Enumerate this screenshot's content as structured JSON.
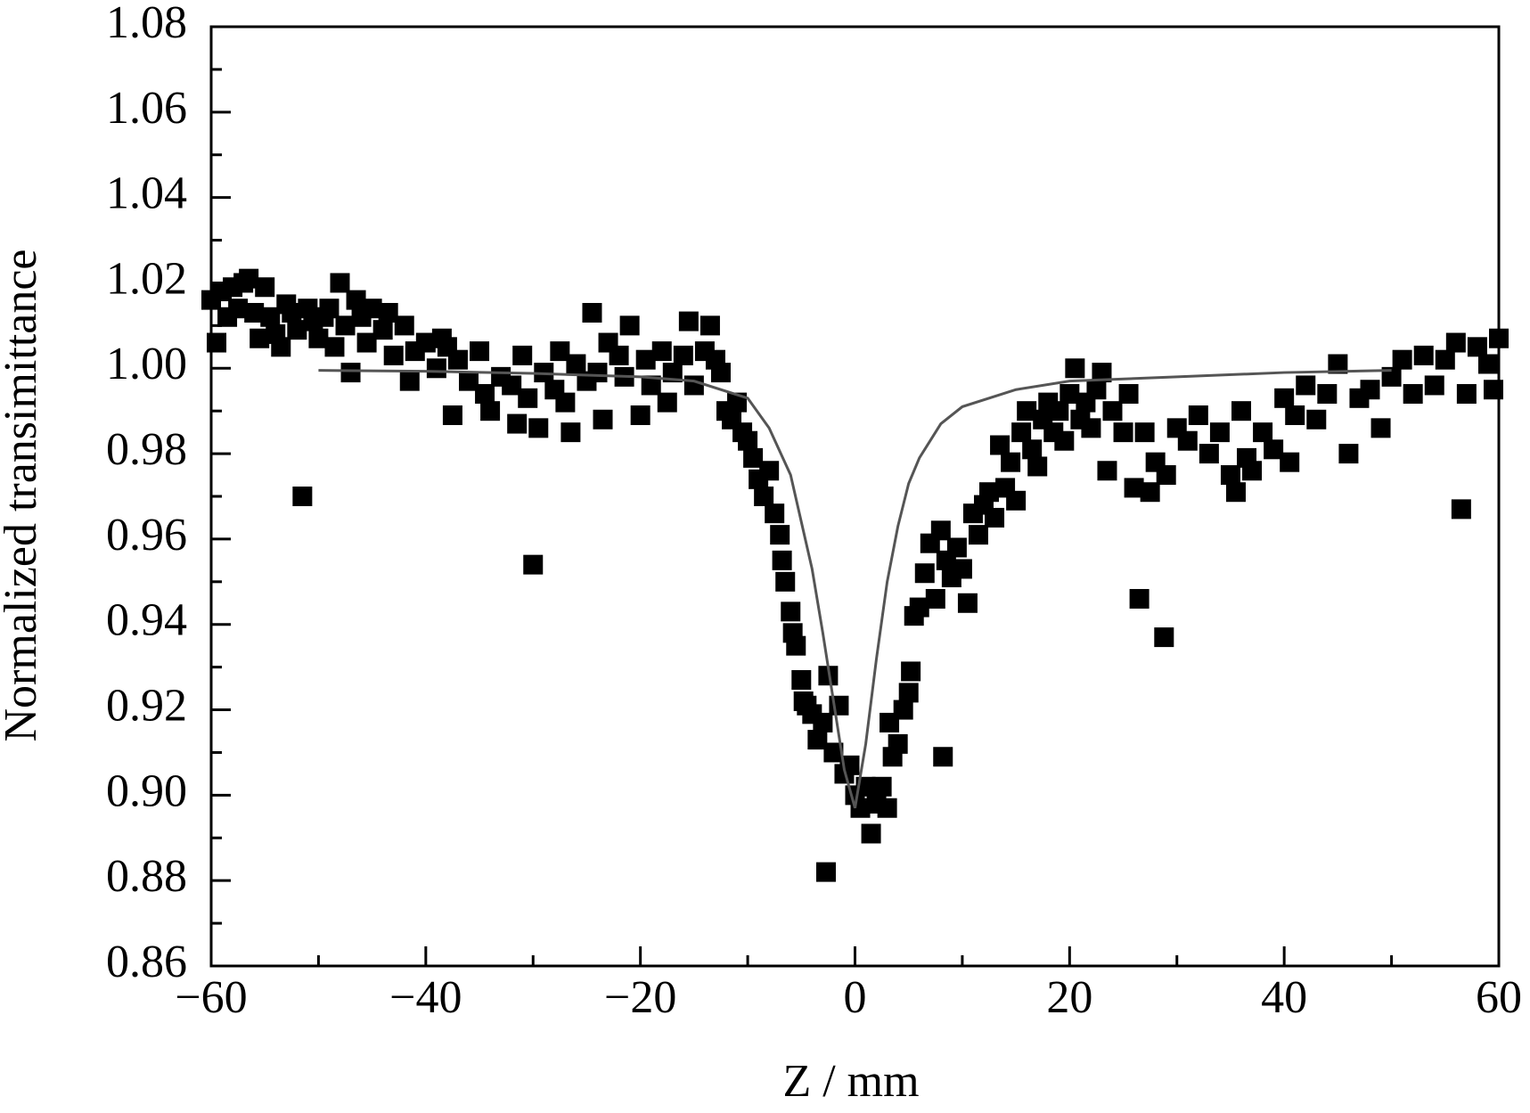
{
  "chart_data": {
    "type": "scatter",
    "x_label": "Z / mm",
    "y_label": "Normalized transimittance",
    "xlim": [
      -60,
      60
    ],
    "ylim": [
      0.86,
      1.08
    ],
    "xticks": [
      {
        "value": -60,
        "label": "−60"
      },
      {
        "value": -40,
        "label": "−40"
      },
      {
        "value": -20,
        "label": "−20"
      },
      0,
      20,
      40,
      60
    ],
    "xminorticks": [
      -50,
      -30,
      -10,
      10,
      30,
      50
    ],
    "yticks": [
      {
        "value": 0.86,
        "label": "0.86"
      },
      {
        "value": 0.88,
        "label": "0.88"
      },
      {
        "value": 0.9,
        "label": "0.90"
      },
      {
        "value": 0.92,
        "label": "0.92"
      },
      {
        "value": 0.94,
        "label": "0.94"
      },
      {
        "value": 0.96,
        "label": "0.96"
      },
      {
        "value": 0.98,
        "label": "0.98"
      },
      {
        "value": 1,
        "label": "1.00"
      },
      {
        "value": 1.02,
        "label": "1.02"
      },
      {
        "value": 1.04,
        "label": "1.04"
      },
      {
        "value": 1.06,
        "label": "1.06"
      },
      {
        "value": 1.08,
        "label": "1.08"
      }
    ],
    "yminorticks": [
      0.87,
      0.89,
      0.91,
      0.93,
      0.95,
      0.97,
      0.99,
      1.01,
      1.03,
      1.05,
      1.07
    ],
    "series": [
      {
        "type": "scatter",
        "color": "#000000",
        "x": [
          -60,
          -59.5,
          -59,
          -58.5,
          -58,
          -57.5,
          -57,
          -56.5,
          -56,
          -55.5,
          -55,
          -54.5,
          -54,
          -53.5,
          -53,
          -52.5,
          -52,
          -51.5,
          -51,
          -50.5,
          -50,
          -49.5,
          -49,
          -48.5,
          -48,
          -47.5,
          -47,
          -46.5,
          -46,
          -45.5,
          -45,
          -44,
          -43.5,
          -43,
          -42,
          -41.5,
          -41,
          -40,
          -39,
          -38.5,
          -38,
          -37.5,
          -37,
          -36,
          -35,
          -34.5,
          -34,
          -33,
          -32,
          -31.5,
          -31,
          -30.5,
          -30,
          -29.5,
          -29,
          -28,
          -27.5,
          -27,
          -26.5,
          -26,
          -25,
          -24.5,
          -24,
          -23.5,
          -23,
          -22,
          -21.5,
          -21,
          -20,
          -19.5,
          -19,
          -18,
          -17.5,
          -17,
          -16,
          -15.5,
          -15,
          -14,
          -13.5,
          -13,
          -12.5,
          -12,
          -11.5,
          -11,
          -10.5,
          -10,
          -9.5,
          -9,
          -8.5,
          -8,
          -7.5,
          -7,
          -6.8,
          -6.5,
          -6,
          -5.8,
          -5.5,
          -5,
          -4.8,
          -4.5,
          -4,
          -3.5,
          -3,
          -2.7,
          -2.5,
          -2,
          -1.5,
          -1,
          -0.5,
          0,
          0.5,
          1,
          1.5,
          2,
          2.5,
          3,
          3.2,
          3.5,
          4,
          4.5,
          5,
          5.2,
          5.5,
          6,
          6.5,
          7,
          7.5,
          8,
          8.2,
          8.5,
          9,
          9.5,
          10,
          10.5,
          11,
          11.5,
          12,
          12.5,
          13,
          13.5,
          14,
          14.5,
          15,
          15.5,
          16,
          16.5,
          17,
          17.5,
          18,
          18.5,
          19,
          19.5,
          20,
          20.5,
          21,
          21.5,
          22,
          22.5,
          23,
          23.5,
          24,
          25,
          25.5,
          26,
          26.5,
          27,
          27.5,
          28,
          28.8,
          29,
          30,
          31,
          32,
          33,
          34,
          35,
          35.5,
          36,
          36.5,
          37,
          38,
          39,
          40,
          40.5,
          41,
          42,
          43,
          44,
          45,
          46,
          47,
          48,
          49,
          50,
          51,
          52,
          53,
          54,
          55,
          56,
          56.5,
          57,
          58,
          59,
          59.5,
          60
        ],
        "values": [
          1.016,
          1.006,
          1.018,
          1.012,
          1.019,
          1.014,
          1.02,
          1.021,
          1.013,
          1.007,
          1.019,
          1.012,
          1.008,
          1.005,
          1.015,
          1.013,
          1.009,
          0.97,
          1.014,
          1.011,
          1.007,
          1.012,
          1.014,
          1.005,
          1.02,
          1.01,
          0.999,
          1.016,
          1.012,
          1.006,
          1.014,
          1.009,
          1.013,
          1.003,
          1.01,
          0.997,
          1.004,
          1.006,
          1.0,
          1.007,
          1.005,
          0.989,
          1.002,
          0.997,
          1.004,
          0.994,
          0.99,
          0.998,
          0.996,
          0.987,
          1.003,
          0.993,
          0.954,
          0.986,
          0.999,
          0.995,
          1.004,
          0.992,
          0.985,
          1.001,
          0.997,
          1.013,
          0.999,
          0.988,
          1.006,
          1.003,
          0.998,
          1.01,
          0.989,
          1.002,
          0.996,
          1.004,
          0.992,
          0.999,
          1.003,
          1.011,
          0.996,
          1.004,
          1.01,
          1.002,
          0.999,
          0.99,
          0.988,
          0.992,
          0.985,
          0.983,
          0.979,
          0.974,
          0.97,
          0.976,
          0.966,
          0.961,
          0.955,
          0.95,
          0.943,
          0.938,
          0.935,
          0.927,
          0.922,
          0.921,
          0.919,
          0.913,
          0.917,
          0.882,
          0.928,
          0.91,
          0.921,
          0.905,
          0.907,
          0.9,
          0.897,
          0.902,
          0.891,
          0.898,
          0.902,
          0.897,
          0.917,
          0.909,
          0.912,
          0.92,
          0.924,
          0.929,
          0.942,
          0.944,
          0.952,
          0.959,
          0.946,
          0.962,
          0.909,
          0.955,
          0.951,
          0.958,
          0.953,
          0.945,
          0.966,
          0.961,
          0.968,
          0.971,
          0.965,
          0.982,
          0.972,
          0.978,
          0.969,
          0.985,
          0.99,
          0.981,
          0.977,
          0.988,
          0.992,
          0.985,
          0.99,
          0.983,
          0.994,
          1.0,
          0.988,
          0.992,
          0.986,
          0.995,
          0.999,
          0.976,
          0.99,
          0.985,
          0.994,
          0.972,
          0.946,
          0.985,
          0.971,
          0.978,
          0.937,
          0.975,
          0.986,
          0.983,
          0.989,
          0.98,
          0.985,
          0.975,
          0.971,
          0.99,
          0.979,
          0.976,
          0.985,
          0.981,
          0.993,
          0.978,
          0.989,
          0.996,
          0.988,
          0.994,
          1.001,
          0.98,
          0.993,
          0.995,
          0.986,
          0.998,
          1.002,
          0.994,
          1.003,
          0.996,
          1.002,
          1.006,
          0.967,
          0.994,
          1.005,
          1.001,
          0.995,
          1.007
        ]
      },
      {
        "type": "line",
        "color": "#555555",
        "x": [
          -50,
          -40,
          -30,
          -20,
          -15,
          -10,
          -8,
          -6,
          -4,
          -3,
          -2,
          -1,
          0,
          1,
          2,
          3,
          4,
          5,
          6,
          8,
          10,
          15,
          20,
          30,
          40,
          50
        ],
        "values": [
          0.9995,
          0.9993,
          0.9988,
          0.998,
          0.997,
          0.993,
          0.986,
          0.975,
          0.953,
          0.938,
          0.922,
          0.906,
          0.897,
          0.912,
          0.932,
          0.95,
          0.963,
          0.973,
          0.979,
          0.987,
          0.991,
          0.995,
          0.997,
          0.998,
          0.999,
          0.9995
        ]
      }
    ]
  }
}
